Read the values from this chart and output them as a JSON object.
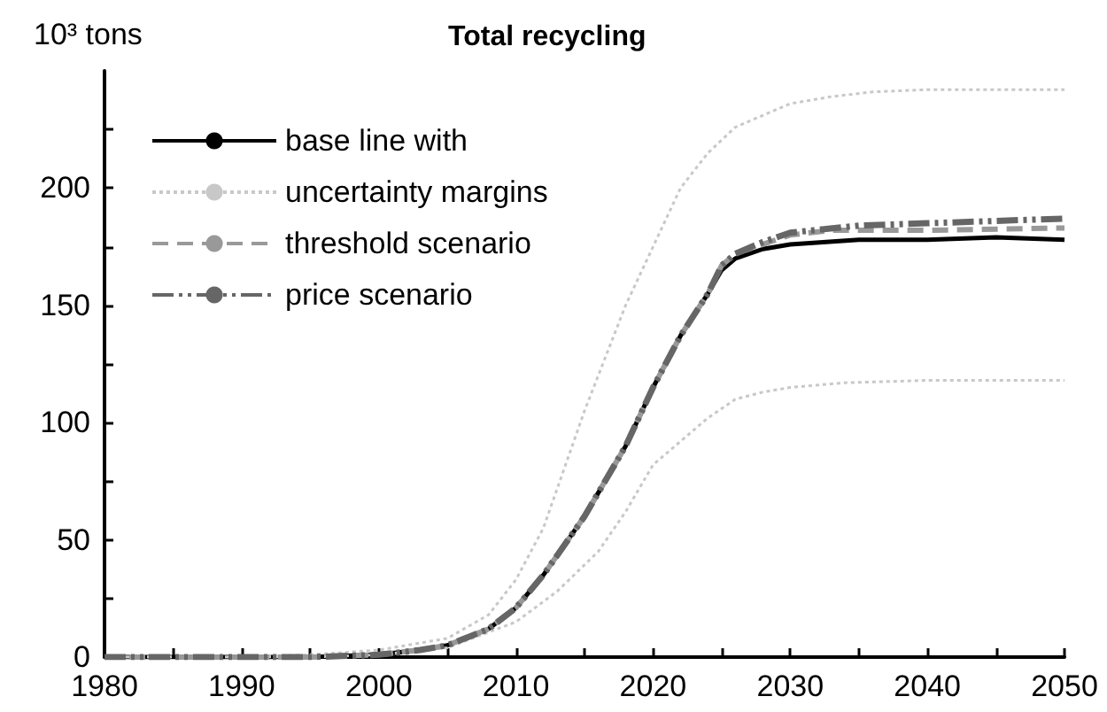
{
  "chart_data": {
    "type": "line",
    "title": "Total recycling",
    "ylabel": "10³ tons",
    "xlim": [
      1980,
      2050
    ],
    "xticks": [
      1980,
      {
        "value": 1985,
        "label": null
      },
      1990,
      {
        "value": 1995,
        "label": null
      },
      2000,
      {
        "value": 2005,
        "label": null
      },
      2010,
      {
        "value": 2015,
        "label": null
      },
      2020,
      {
        "value": 2025,
        "label": null
      },
      2030,
      {
        "value": 2035,
        "label": null
      },
      2040,
      {
        "value": 2045,
        "label": null
      },
      2050
    ],
    "ylim": [
      0,
      250
    ],
    "yticks": [
      0,
      {
        "value": 25,
        "label": null
      },
      50,
      {
        "value": 75,
        "label": null
      },
      100,
      {
        "value": 125,
        "label": null
      },
      150,
      {
        "value": 175,
        "label": null
      },
      200,
      {
        "value": 225,
        "label": null
      }
    ],
    "grid": false,
    "legend": "top left",
    "marker": "none",
    "series": [
      {
        "name": "base line with",
        "color": "#000000",
        "line_style": "solid",
        "x": [
          1980,
          1995,
          2000,
          2003,
          2005,
          2008,
          2010,
          2012,
          2015,
          2018,
          2020,
          2022,
          2024,
          2025,
          2026,
          2028,
          2030,
          2035,
          2040,
          2045,
          2050
        ],
        "values": [
          0,
          0,
          1,
          3,
          5,
          12,
          21,
          35,
          60,
          90,
          115,
          137,
          155,
          165,
          170,
          174,
          176,
          178,
          178,
          179,
          178
        ]
      },
      {
        "name": "uncertainty margins",
        "color": "#c8c8c8",
        "line_style": "dotted",
        "x": [
          1980,
          1990,
          1995,
          2000,
          2005,
          2008,
          2010,
          2012,
          2015,
          2018,
          2020,
          2022,
          2024,
          2026,
          2028,
          2030,
          2033,
          2036,
          2040,
          2050
        ],
        "values": [
          0,
          0,
          1,
          3,
          8,
          18,
          33,
          55,
          105,
          150,
          175,
          200,
          215,
          226,
          231,
          236,
          239,
          241,
          242,
          242
        ]
      },
      {
        "color": "#c8c8c8",
        "line_style": "dotted",
        "x": [
          1980,
          1995,
          2000,
          2005,
          2010,
          2013,
          2016,
          2018,
          2020,
          2022,
          2024,
          2026,
          2028,
          2030,
          2034,
          2040,
          2050
        ],
        "values": [
          0,
          0,
          1,
          4,
          15,
          28,
          45,
          62,
          82,
          92,
          102,
          110,
          113,
          115,
          117,
          118,
          118
        ]
      },
      {
        "name": "threshold scenario",
        "color": "#999999",
        "line_style": "dashed",
        "x": [
          1980,
          1995,
          2000,
          2003,
          2005,
          2008,
          2010,
          2012,
          2015,
          2018,
          2020,
          2022,
          2024,
          2025,
          2026,
          2028,
          2030,
          2033,
          2040,
          2050
        ],
        "values": [
          0,
          0,
          1,
          3,
          5,
          12,
          21,
          35,
          60,
          90,
          115,
          137,
          155,
          167,
          172,
          176,
          180,
          182,
          182,
          183
        ]
      },
      {
        "name": "price scenario",
        "color": "#666666",
        "line_style": "dashdotdot",
        "x": [
          1980,
          1995,
          2000,
          2003,
          2005,
          2008,
          2010,
          2012,
          2015,
          2018,
          2020,
          2022,
          2024,
          2025,
          2026,
          2028,
          2030,
          2035,
          2040,
          2045,
          2050
        ],
        "values": [
          0,
          0,
          1,
          3,
          5,
          12,
          21,
          35,
          60,
          90,
          115,
          137,
          155,
          167,
          172,
          177,
          181,
          184,
          185,
          186,
          187
        ]
      }
    ]
  }
}
